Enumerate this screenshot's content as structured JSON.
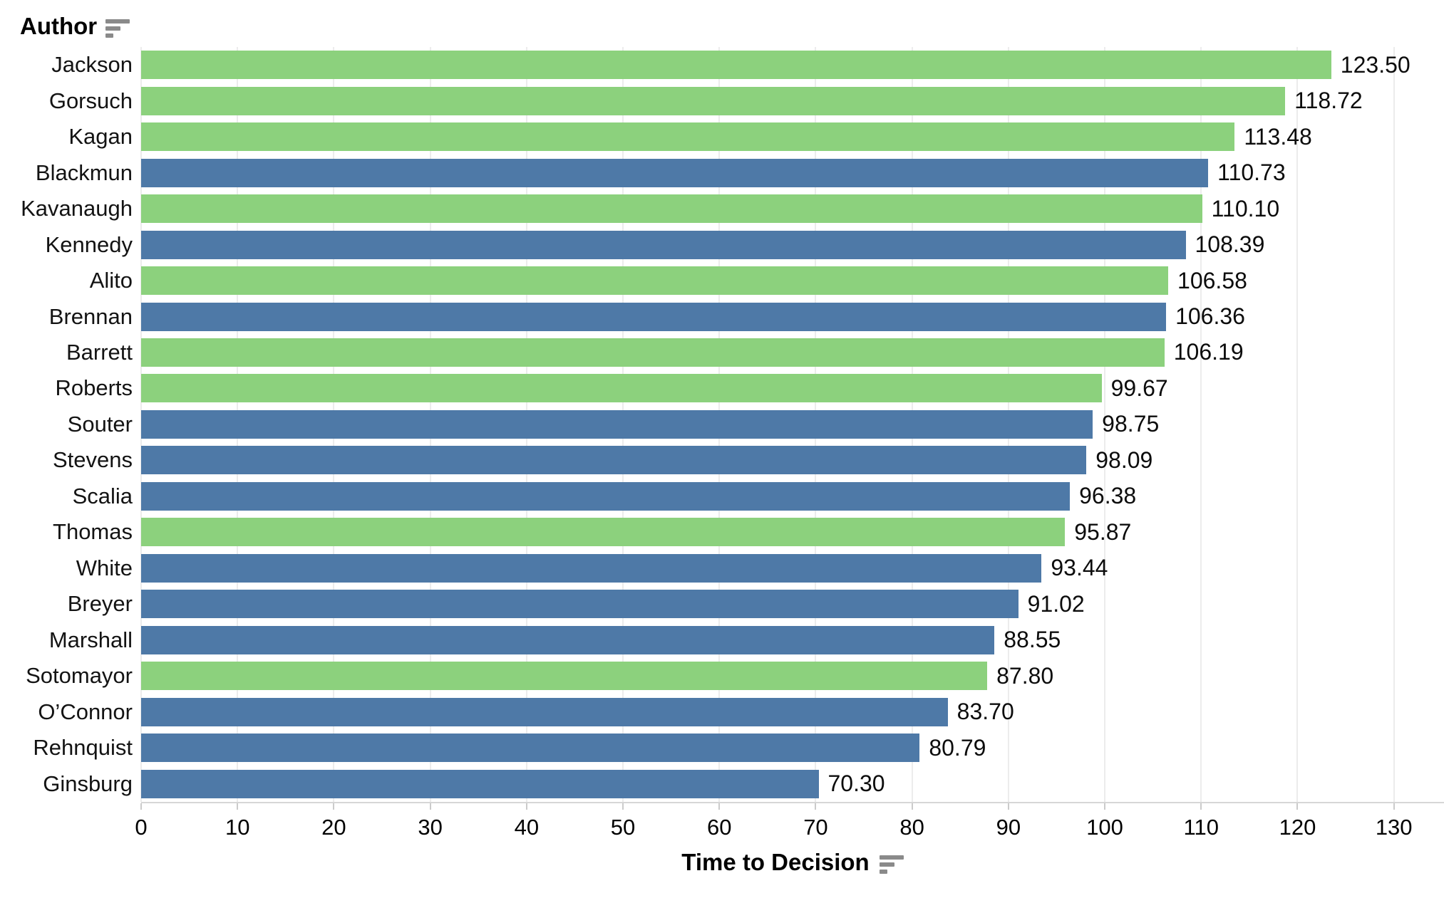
{
  "header": {
    "row_field_label": "Author",
    "sort_icon": "sort-descending-icon"
  },
  "x_axis": {
    "title": "Time to Decision",
    "sort_icon": "sort-descending-icon",
    "tick_labels": [
      "0",
      "10",
      "20",
      "30",
      "40",
      "50",
      "60",
      "70",
      "80",
      "90",
      "100",
      "110",
      "120",
      "130"
    ]
  },
  "palette": {
    "green": "#8CD17D",
    "blue": "#4E79A7"
  },
  "chart_data": {
    "type": "bar",
    "orientation": "horizontal",
    "title": "",
    "xlabel": "Time to Decision",
    "ylabel": "Author",
    "xlim": [
      0,
      135.2
    ],
    "x_ticks": [
      0,
      10,
      20,
      30,
      40,
      50,
      60,
      70,
      80,
      90,
      100,
      110,
      120,
      130
    ],
    "grid": "vertical-light",
    "legend": "none",
    "categories": [
      "Jackson",
      "Gorsuch",
      "Kagan",
      "Blackmun",
      "Kavanaugh",
      "Kennedy",
      "Alito",
      "Brennan",
      "Barrett",
      "Roberts",
      "Souter",
      "Stevens",
      "Scalia",
      "Thomas",
      "White",
      "Breyer",
      "Marshall",
      "Sotomayor",
      "O’Connor",
      "Rehnquist",
      "Ginsburg"
    ],
    "values": [
      123.5,
      118.72,
      113.48,
      110.73,
      110.1,
      108.39,
      106.58,
      106.36,
      106.19,
      99.67,
      98.75,
      98.09,
      96.38,
      95.87,
      93.44,
      91.02,
      88.55,
      87.8,
      83.7,
      80.79,
      70.3
    ],
    "value_labels": [
      "123.50",
      "118.72",
      "113.48",
      "110.73",
      "110.10",
      "108.39",
      "106.58",
      "106.36",
      "106.19",
      "99.67",
      "98.75",
      "98.09",
      "96.38",
      "95.87",
      "93.44",
      "91.02",
      "88.55",
      "87.80",
      "83.70",
      "80.79",
      "70.30"
    ],
    "bar_color_keys": [
      "green",
      "green",
      "green",
      "blue",
      "green",
      "blue",
      "green",
      "blue",
      "green",
      "green",
      "blue",
      "blue",
      "blue",
      "green",
      "blue",
      "blue",
      "blue",
      "green",
      "blue",
      "blue",
      "blue"
    ]
  }
}
